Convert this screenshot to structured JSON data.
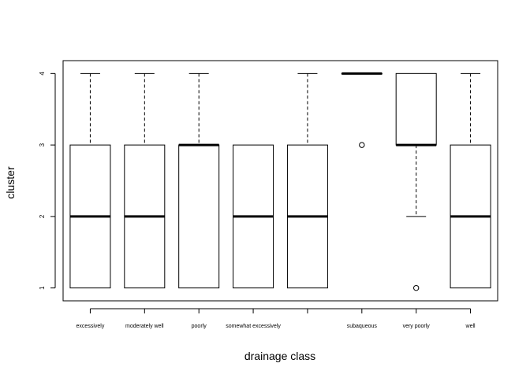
{
  "chart_data": {
    "type": "boxplot",
    "xlabel": "drainage class",
    "ylabel": "cluster",
    "ylim": [
      0.82,
      4.18
    ],
    "yticks": [
      "1",
      "2",
      "3",
      "4"
    ],
    "grid": false,
    "legend": "none",
    "categories": [
      "excessively",
      "moderately well",
      "poorly",
      "somewhat excessively",
      "",
      "subaqueous",
      "very poorly",
      "well"
    ],
    "boxes": [
      {
        "min": 1,
        "q1": 1,
        "median": 2,
        "q3": 3,
        "max": 4,
        "outliers": []
      },
      {
        "min": 1,
        "q1": 1,
        "median": 2,
        "q3": 3,
        "max": 4,
        "outliers": []
      },
      {
        "min": 1,
        "q1": 1,
        "median": 3,
        "q3": 3,
        "max": 4,
        "outliers": []
      },
      {
        "min": 1,
        "q1": 1,
        "median": 2,
        "q3": 3,
        "max": 3,
        "outliers": []
      },
      {
        "min": 1,
        "q1": 1,
        "median": 2,
        "q3": 3,
        "max": 4,
        "outliers": []
      },
      {
        "min": 4,
        "q1": 4,
        "median": 4,
        "q3": 4,
        "max": 4,
        "outliers": [
          3
        ]
      },
      {
        "min": 2,
        "q1": 3,
        "median": 3,
        "q3": 4,
        "max": 4,
        "outliers": [
          1
        ]
      },
      {
        "min": 1,
        "q1": 1,
        "median": 2,
        "q3": 3,
        "max": 4,
        "outliers": []
      }
    ]
  }
}
